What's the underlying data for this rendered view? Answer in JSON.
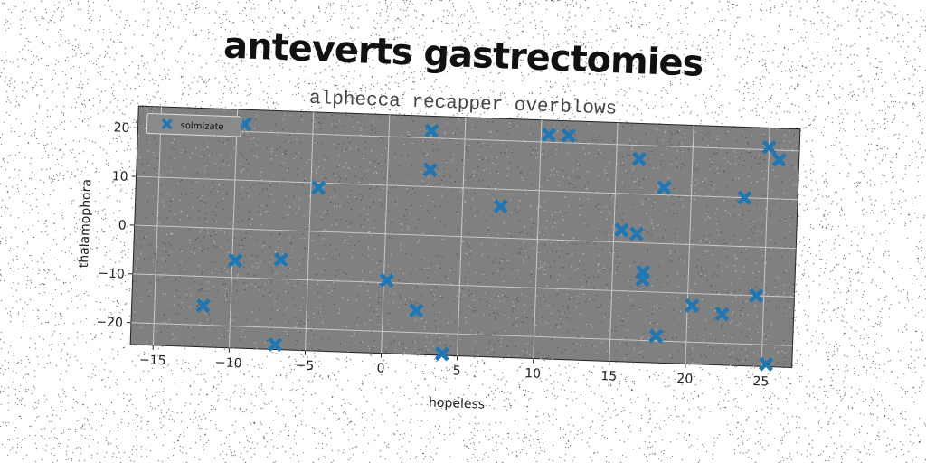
{
  "chart_data": {
    "type": "scatter",
    "title": "anteverts gastrectomies",
    "subtitle": "alphecca recapper overblows",
    "xlabel": "hopeless",
    "ylabel": "thalamophora",
    "xlim": [
      -16.5,
      27
    ],
    "ylim": [
      -24.5,
      24.5
    ],
    "xticks": [
      -15,
      -10,
      -5,
      0,
      5,
      10,
      15,
      20,
      25
    ],
    "yticks": [
      -20,
      -10,
      0,
      10,
      20
    ],
    "grid": true,
    "legend_position": "top-left",
    "series": [
      {
        "name": "solmizate",
        "color": "#1f77b4",
        "marker": "X",
        "points": [
          {
            "x": -9.5,
            "y": 21.5
          },
          {
            "x": 2.8,
            "y": 21.5
          },
          {
            "x": 10.5,
            "y": 21.5
          },
          {
            "x": 11.8,
            "y": 21.5
          },
          {
            "x": 16.5,
            "y": 17.2
          },
          {
            "x": 25.0,
            "y": 20.5
          },
          {
            "x": 25.7,
            "y": 18.0
          },
          {
            "x": 2.8,
            "y": 13.5
          },
          {
            "x": -4.5,
            "y": 9.0
          },
          {
            "x": 18.2,
            "y": 11.5
          },
          {
            "x": 23.5,
            "y": 10.0
          },
          {
            "x": 7.5,
            "y": 6.5
          },
          {
            "x": 15.5,
            "y": 2.5
          },
          {
            "x": 16.5,
            "y": 1.8
          },
          {
            "x": -9.8,
            "y": -6.5
          },
          {
            "x": -6.8,
            "y": -6.0
          },
          {
            "x": 17.0,
            "y": -6.0
          },
          {
            "x": 17.0,
            "y": -7.5
          },
          {
            "x": 0.2,
            "y": -9.5
          },
          {
            "x": 24.5,
            "y": -10.0
          },
          {
            "x": 20.3,
            "y": -12.5
          },
          {
            "x": 22.3,
            "y": -14.0
          },
          {
            "x": 2.2,
            "y": -15.5
          },
          {
            "x": -11.8,
            "y": -16.0
          },
          {
            "x": 18.0,
            "y": -19.0
          },
          {
            "x": -7.0,
            "y": -23.5
          },
          {
            "x": 4.0,
            "y": -24.2
          },
          {
            "x": 25.3,
            "y": -24.0
          }
        ]
      }
    ]
  }
}
